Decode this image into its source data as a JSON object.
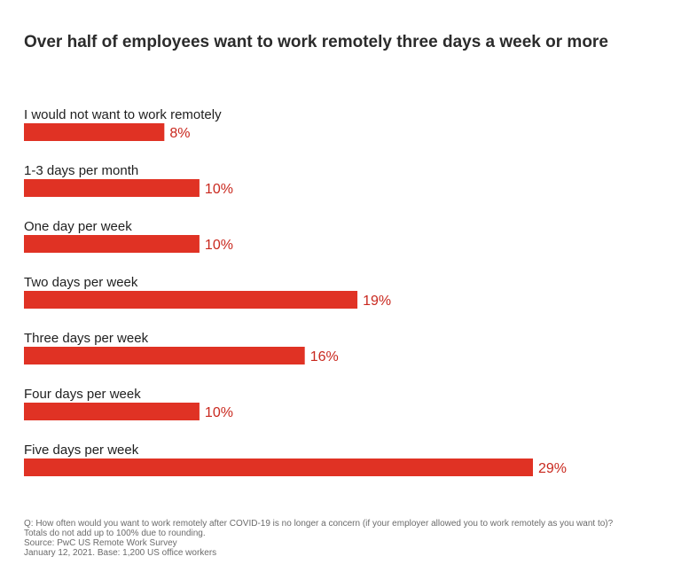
{
  "chart_data": {
    "type": "bar",
    "orientation": "horizontal",
    "title": "Over half of employees want to work remotely three days a week or more",
    "categories": [
      "I would not want to work remotely",
      "1-3 days per month",
      "One day per week",
      "Two days per week",
      "Three days per week",
      "Four days per week",
      "Five days per week"
    ],
    "values": [
      8,
      10,
      10,
      19,
      16,
      10,
      29
    ],
    "value_labels": [
      "8%",
      "10%",
      "10%",
      "19%",
      "16%",
      "10%",
      "29%"
    ],
    "xlim": [
      0,
      29
    ],
    "grid": false,
    "bar_color": "#e03224",
    "label_color": "#c9281e"
  },
  "notes": {
    "question": "Q: How often would you want to work remotely after COVID-19 is no longer a concern (if your employer allowed you to work remotely as you want to)?",
    "rounding": "Totals do not add up to 100% due to rounding.",
    "source": "Source: PwC US Remote Work Survey",
    "date_base": "January 12, 2021. Base: 1,200 US office workers"
  }
}
